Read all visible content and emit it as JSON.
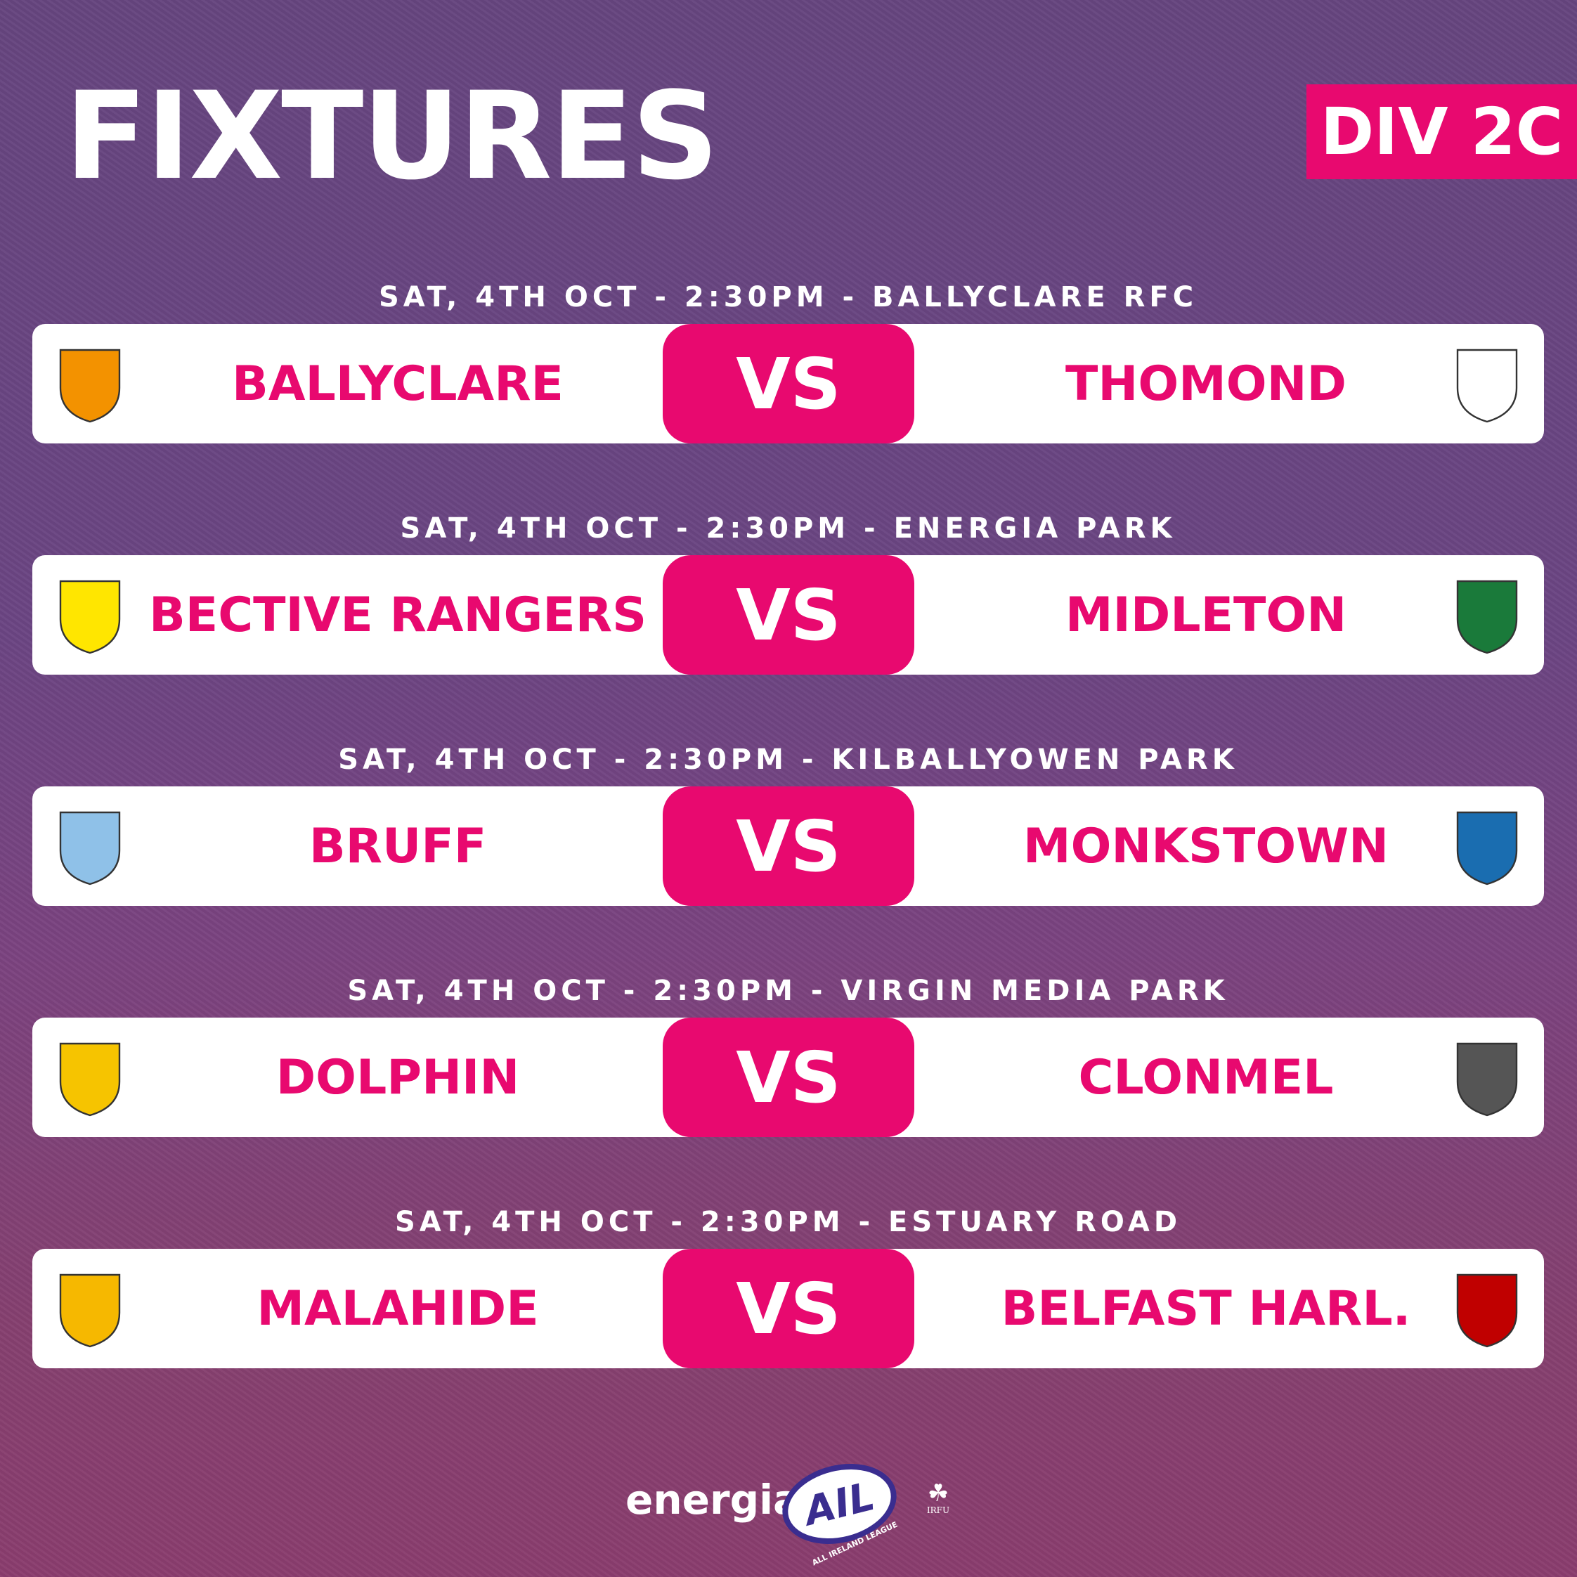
{
  "header": {
    "title": "FIXTURES",
    "division": "DIV 2C"
  },
  "colors": {
    "accent": "#e8096f",
    "background": "#6b4583"
  },
  "fixtures": [
    {
      "date": "SAT, 4TH OCT - 2:30PM - BALLYCLARE RFC",
      "home": "BALLYCLARE",
      "away": "THOMOND",
      "vs": "VS",
      "home_crest": "ballyclare-crest",
      "away_crest": "thomond-crest"
    },
    {
      "date": "SAT, 4TH OCT - 2:30PM - ENERGIA PARK",
      "home": "BECTIVE RANGERS",
      "away": "MIDLETON",
      "vs": "VS",
      "home_crest": "bective-rangers-crest",
      "away_crest": "midleton-crest"
    },
    {
      "date": "SAT, 4TH OCT - 2:30PM - KILBALLYOWEN PARK",
      "home": "BRUFF",
      "away": "MONKSTOWN",
      "vs": "VS",
      "home_crest": "bruff-crest",
      "away_crest": "monkstown-crest"
    },
    {
      "date": "SAT, 4TH OCT - 2:30PM - VIRGIN MEDIA PARK",
      "home": "DOLPHIN",
      "away": "CLONMEL",
      "vs": "VS",
      "home_crest": "dolphin-crest",
      "away_crest": "clonmel-crest"
    },
    {
      "date": "SAT, 4TH OCT - 2:30PM - ESTUARY ROAD",
      "home": "MALAHIDE",
      "away": "BELFAST HARL.",
      "vs": "VS",
      "home_crest": "malahide-crest",
      "away_crest": "belfast-harlequins-crest"
    }
  ],
  "footer": {
    "sponsor": "energia",
    "league_logo": "AIL",
    "league_name": "ALL IRELAND LEAGUE",
    "union": "IRFU"
  }
}
